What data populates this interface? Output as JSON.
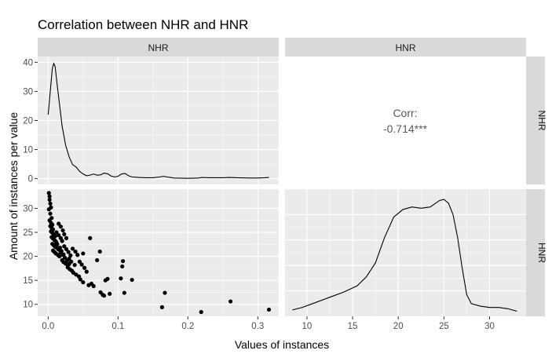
{
  "title": "Correlation between NHR and HNR",
  "xlabel": "Values of instances",
  "ylabel": "Amount of instances per value",
  "strips": {
    "top": [
      "NHR",
      "HNR"
    ],
    "right": [
      "NHR",
      "HNR"
    ]
  },
  "colors": {
    "panel_bg": "#ebebeb",
    "grid_major": "#ffffff",
    "strip_bg": "#d9d9d9",
    "ink": "#000000",
    "corr_text": "#595959"
  },
  "chart_data": [
    {
      "type": "line",
      "panel": "NHR density",
      "x_ticks": [],
      "y_ticks": [
        "0",
        "10",
        "20",
        "30",
        "40"
      ],
      "xlim": [
        -0.015,
        0.33
      ],
      "ylim": [
        -2,
        42
      ],
      "grid": true,
      "series": [
        {
          "x": [
            0.0,
            0.003,
            0.006,
            0.008,
            0.01,
            0.013,
            0.016,
            0.02,
            0.025,
            0.03,
            0.035,
            0.04,
            0.045,
            0.05,
            0.055,
            0.06,
            0.065,
            0.07,
            0.075,
            0.08,
            0.085,
            0.09,
            0.095,
            0.1,
            0.105,
            0.11,
            0.115,
            0.12,
            0.13,
            0.14,
            0.15,
            0.16,
            0.165,
            0.17,
            0.18,
            0.2,
            0.215,
            0.22,
            0.23,
            0.25,
            0.26,
            0.27,
            0.29,
            0.3,
            0.31,
            0.316
          ],
          "y": [
            22.0,
            30.0,
            38.0,
            39.6,
            38.5,
            32.0,
            26.0,
            18.0,
            11.5,
            7.5,
            4.8,
            4.0,
            2.5,
            1.6,
            1.0,
            1.2,
            1.6,
            1.2,
            1.3,
            1.9,
            1.7,
            0.9,
            0.6,
            0.8,
            1.6,
            1.8,
            1.0,
            0.6,
            0.4,
            0.3,
            0.3,
            0.6,
            0.8,
            0.6,
            0.2,
            0.1,
            0.2,
            0.4,
            0.3,
            0.3,
            0.4,
            0.3,
            0.2,
            0.2,
            0.3,
            0.4
          ]
        }
      ]
    },
    {
      "type": "text",
      "panel": "NHR vs HNR correlation",
      "label": "Corr:",
      "value": "-0.714***"
    },
    {
      "type": "scatter",
      "panel": "NHR vs HNR",
      "x_ticks": [
        "0.0",
        "0.1",
        "0.2",
        "0.3"
      ],
      "y_ticks": [
        "10",
        "15",
        "20",
        "25",
        "30"
      ],
      "xlim": [
        -0.015,
        0.33
      ],
      "ylim": [
        7.5,
        34
      ],
      "grid": true,
      "series": [
        {
          "x": [
            0.001,
            0.002,
            0.002,
            0.003,
            0.004,
            0.001,
            0.003,
            0.005,
            0.002,
            0.004,
            0.006,
            0.003,
            0.005,
            0.007,
            0.004,
            0.006,
            0.008,
            0.01,
            0.005,
            0.007,
            0.009,
            0.011,
            0.012,
            0.006,
            0.008,
            0.01,
            0.013,
            0.015,
            0.007,
            0.009,
            0.011,
            0.014,
            0.016,
            0.012,
            0.015,
            0.018,
            0.02,
            0.013,
            0.017,
            0.019,
            0.022,
            0.024,
            0.015,
            0.018,
            0.021,
            0.023,
            0.026,
            0.02,
            0.022,
            0.025,
            0.028,
            0.018,
            0.021,
            0.024,
            0.027,
            0.03,
            0.023,
            0.026,
            0.029,
            0.032,
            0.028,
            0.031,
            0.034,
            0.036,
            0.03,
            0.033,
            0.038,
            0.035,
            0.039,
            0.042,
            0.04,
            0.044,
            0.046,
            0.05,
            0.045,
            0.048,
            0.052,
            0.055,
            0.05,
            0.06,
            0.058,
            0.062,
            0.065,
            0.07,
            0.075,
            0.078,
            0.082,
            0.085,
            0.088,
            0.08,
            0.074,
            0.104,
            0.106,
            0.107,
            0.109,
            0.12,
            0.163,
            0.167,
            0.219,
            0.261,
            0.316
          ],
          "y": [
            33.2,
            32.5,
            31.8,
            31.0,
            30.2,
            29.8,
            28.9,
            28.0,
            27.5,
            27.0,
            26.6,
            26.3,
            25.9,
            25.6,
            25.2,
            24.9,
            24.5,
            24.2,
            24.0,
            23.7,
            23.4,
            23.1,
            22.8,
            22.6,
            22.3,
            22.0,
            21.7,
            21.4,
            21.2,
            20.9,
            20.6,
            20.3,
            20.0,
            25.0,
            24.4,
            23.8,
            23.2,
            22.5,
            21.8,
            21.1,
            20.4,
            19.7,
            26.8,
            26.2,
            25.4,
            24.6,
            23.8,
            19.2,
            18.8,
            18.5,
            18.1,
            20.8,
            20.3,
            19.7,
            19.1,
            18.4,
            22.1,
            21.5,
            20.9,
            20.2,
            17.7,
            17.3,
            17.0,
            16.6,
            19.5,
            18.9,
            18.2,
            21.6,
            21.0,
            20.3,
            16.2,
            15.8,
            15.2,
            14.6,
            18.9,
            18.3,
            17.6,
            16.8,
            20.6,
            23.8,
            14.0,
            14.3,
            13.8,
            19.2,
            12.5,
            12.0,
            15.0,
            15.3,
            12.2,
            11.8,
            21.0,
            15.4,
            17.9,
            19.0,
            12.4,
            15.1,
            9.4,
            12.4,
            8.4,
            10.6,
            8.9
          ]
        }
      ]
    },
    {
      "type": "line",
      "panel": "HNR density",
      "x_ticks": [
        "10",
        "15",
        "20",
        "25",
        "30"
      ],
      "y_ticks": [],
      "xlim": [
        7.6,
        34.0
      ],
      "ylim": [
        0,
        1
      ],
      "grid": true,
      "series": [
        {
          "x": [
            8.4,
            9.5,
            11.0,
            12.5,
            14.0,
            15.5,
            16.5,
            17.5,
            18.5,
            19.5,
            20.5,
            21.5,
            22.5,
            23.5,
            24.5,
            25.0,
            25.5,
            26.0,
            26.5,
            27.0,
            27.5,
            28.0,
            29.0,
            30.0,
            31.0,
            32.0,
            33.0
          ],
          "y": [
            0.05,
            0.07,
            0.11,
            0.15,
            0.19,
            0.24,
            0.31,
            0.42,
            0.62,
            0.78,
            0.84,
            0.86,
            0.85,
            0.86,
            0.91,
            0.92,
            0.89,
            0.8,
            0.62,
            0.38,
            0.17,
            0.1,
            0.08,
            0.07,
            0.07,
            0.06,
            0.04
          ]
        }
      ]
    }
  ]
}
